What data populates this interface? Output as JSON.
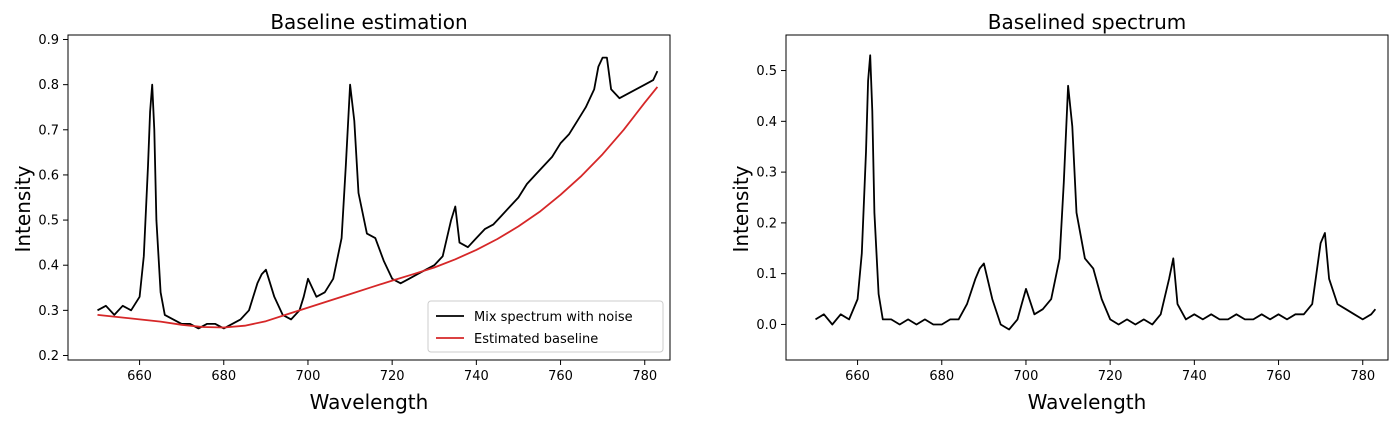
{
  "chart_data": [
    {
      "type": "line",
      "title": "Baseline estimation",
      "xlabel": "Wavelength",
      "ylabel": "Intensity",
      "xlim": [
        643,
        786
      ],
      "ylim": [
        0.19,
        0.91
      ],
      "xticks": [
        660,
        680,
        700,
        720,
        740,
        760,
        780
      ],
      "yticks": [
        0.2,
        0.3,
        0.4,
        0.5,
        0.6,
        0.7,
        0.8,
        0.9
      ],
      "grid": false,
      "legend_position": "lower-right",
      "series": [
        {
          "name": "Mix spectrum with noise",
          "color": "#000000",
          "x": [
            650,
            652,
            654,
            656,
            658,
            660,
            661,
            662,
            662.5,
            663,
            663.5,
            664,
            665,
            666,
            668,
            670,
            672,
            674,
            676,
            678,
            680,
            682,
            684,
            686,
            688,
            689,
            690,
            692,
            694,
            696,
            698,
            699,
            700,
            702,
            704,
            706,
            708,
            709,
            710,
            711,
            712,
            714,
            716,
            718,
            720,
            722,
            724,
            726,
            728,
            730,
            732,
            734,
            735,
            736,
            738,
            740,
            742,
            744,
            746,
            748,
            750,
            752,
            754,
            756,
            758,
            760,
            762,
            764,
            766,
            768,
            769,
            770,
            771,
            772,
            774,
            776,
            778,
            780,
            782,
            783
          ],
          "values": [
            0.3,
            0.31,
            0.29,
            0.31,
            0.3,
            0.33,
            0.42,
            0.62,
            0.74,
            0.8,
            0.7,
            0.5,
            0.34,
            0.29,
            0.28,
            0.27,
            0.27,
            0.26,
            0.27,
            0.27,
            0.26,
            0.27,
            0.28,
            0.3,
            0.36,
            0.38,
            0.39,
            0.33,
            0.29,
            0.28,
            0.3,
            0.33,
            0.37,
            0.33,
            0.34,
            0.37,
            0.46,
            0.62,
            0.8,
            0.72,
            0.56,
            0.47,
            0.46,
            0.41,
            0.37,
            0.36,
            0.37,
            0.38,
            0.39,
            0.4,
            0.42,
            0.5,
            0.53,
            0.45,
            0.44,
            0.46,
            0.48,
            0.49,
            0.51,
            0.53,
            0.55,
            0.58,
            0.6,
            0.62,
            0.64,
            0.67,
            0.69,
            0.72,
            0.75,
            0.79,
            0.84,
            0.86,
            0.86,
            0.79,
            0.77,
            0.78,
            0.79,
            0.8,
            0.81,
            0.83
          ]
        },
        {
          "name": "Estimated baseline",
          "color": "#d62728",
          "x": [
            650,
            655,
            660,
            665,
            670,
            675,
            680,
            685,
            690,
            695,
            700,
            705,
            710,
            715,
            720,
            725,
            730,
            735,
            740,
            745,
            750,
            755,
            760,
            765,
            770,
            775,
            780,
            783
          ],
          "values": [
            0.29,
            0.285,
            0.28,
            0.275,
            0.268,
            0.263,
            0.262,
            0.266,
            0.276,
            0.291,
            0.306,
            0.321,
            0.336,
            0.351,
            0.366,
            0.38,
            0.395,
            0.413,
            0.434,
            0.458,
            0.486,
            0.518,
            0.556,
            0.598,
            0.646,
            0.7,
            0.76,
            0.795
          ]
        }
      ]
    },
    {
      "type": "line",
      "title": "Baselined spectrum",
      "xlabel": "Wavelength",
      "ylabel": "Intensity",
      "xlim": [
        643,
        786
      ],
      "ylim": [
        -0.07,
        0.57
      ],
      "xticks": [
        660,
        680,
        700,
        720,
        740,
        760,
        780
      ],
      "yticks": [
        0.0,
        0.1,
        0.2,
        0.3,
        0.4,
        0.5
      ],
      "ytick_labels": [
        "0.0",
        "0.1",
        "0.2",
        "0.3",
        "0.4",
        "0.5"
      ],
      "grid": false,
      "series": [
        {
          "color": "#000000",
          "x": [
            650,
            652,
            654,
            656,
            658,
            660,
            661,
            662,
            662.5,
            663,
            663.5,
            664,
            665,
            666,
            668,
            670,
            672,
            674,
            676,
            678,
            680,
            682,
            684,
            686,
            688,
            689,
            690,
            692,
            694,
            696,
            698,
            699,
            700,
            702,
            704,
            706,
            708,
            709,
            710,
            711,
            712,
            714,
            716,
            718,
            720,
            722,
            724,
            726,
            728,
            730,
            732,
            734,
            735,
            736,
            738,
            740,
            742,
            744,
            746,
            748,
            750,
            752,
            754,
            756,
            758,
            760,
            762,
            764,
            766,
            768,
            769,
            770,
            771,
            772,
            774,
            776,
            778,
            780,
            782,
            783
          ],
          "values": [
            0.01,
            0.02,
            0.0,
            0.02,
            0.01,
            0.05,
            0.14,
            0.34,
            0.48,
            0.53,
            0.42,
            0.22,
            0.06,
            0.01,
            0.01,
            0.0,
            0.01,
            0.0,
            0.01,
            0.0,
            0.0,
            0.01,
            0.01,
            0.04,
            0.09,
            0.11,
            0.12,
            0.05,
            0.0,
            -0.01,
            0.01,
            0.04,
            0.07,
            0.02,
            0.03,
            0.05,
            0.13,
            0.28,
            0.47,
            0.39,
            0.22,
            0.13,
            0.11,
            0.05,
            0.01,
            0.0,
            0.01,
            0.0,
            0.01,
            0.0,
            0.02,
            0.09,
            0.13,
            0.04,
            0.01,
            0.02,
            0.01,
            0.02,
            0.01,
            0.01,
            0.02,
            0.01,
            0.01,
            0.02,
            0.01,
            0.02,
            0.01,
            0.02,
            0.02,
            0.04,
            0.1,
            0.16,
            0.18,
            0.09,
            0.04,
            0.03,
            0.02,
            0.01,
            0.02,
            0.03
          ]
        }
      ]
    }
  ]
}
